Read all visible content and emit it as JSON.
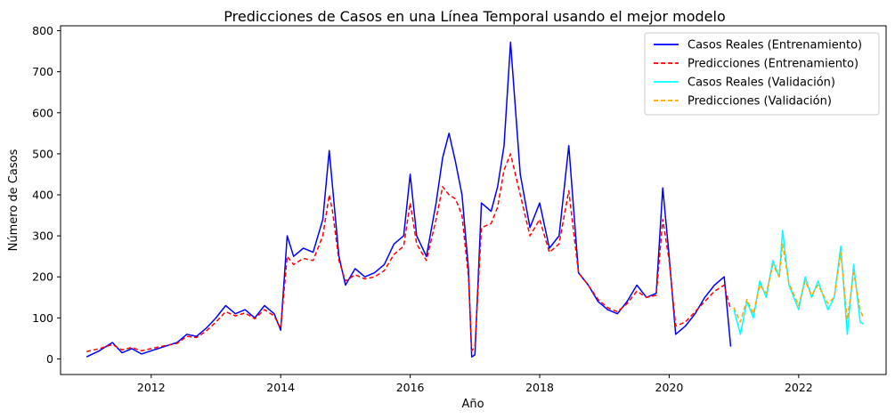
{
  "chart_data": {
    "type": "line",
    "title": "Predicciones de Casos en una Línea Temporal usando el mejor modelo",
    "xlabel": "Año",
    "ylabel": "Número de Casos",
    "xlim": [
      2010.6,
      2023.35
    ],
    "ylim": [
      -38,
      812
    ],
    "xticks": [
      2012,
      2014,
      2016,
      2018,
      2020,
      2022
    ],
    "yticks": [
      0,
      100,
      200,
      300,
      400,
      500,
      600,
      700,
      800
    ],
    "grid": false,
    "legend_position": "top-right",
    "series": [
      {
        "name": "Casos Reales (Entrenamiento)",
        "color": "#0000ff",
        "dash": "solid",
        "x": [
          2011.0,
          2011.2,
          2011.4,
          2011.55,
          2011.7,
          2011.85,
          2012.0,
          2012.2,
          2012.4,
          2012.55,
          2012.7,
          2012.85,
          2013.0,
          2013.15,
          2013.3,
          2013.45,
          2013.6,
          2013.75,
          2013.9,
          2014.0,
          2014.1,
          2014.2,
          2014.35,
          2014.5,
          2014.65,
          2014.75,
          2014.8,
          2014.9,
          2015.0,
          2015.15,
          2015.3,
          2015.45,
          2015.6,
          2015.75,
          2015.9,
          2016.0,
          2016.1,
          2016.25,
          2016.4,
          2016.5,
          2016.6,
          2016.7,
          2016.8,
          2016.9,
          2016.95,
          2017.0,
          2017.1,
          2017.25,
          2017.35,
          2017.45,
          2017.55,
          2017.7,
          2017.85,
          2018.0,
          2018.15,
          2018.3,
          2018.45,
          2018.6,
          2018.75,
          2018.9,
          2019.05,
          2019.2,
          2019.35,
          2019.5,
          2019.65,
          2019.8,
          2019.9,
          2020.0,
          2020.1,
          2020.25,
          2020.4,
          2020.55,
          2020.7,
          2020.85,
          2020.95
        ],
        "values": [
          5,
          20,
          40,
          15,
          25,
          12,
          20,
          30,
          40,
          60,
          55,
          75,
          100,
          130,
          110,
          120,
          100,
          130,
          110,
          70,
          300,
          250,
          270,
          260,
          340,
          508,
          420,
          250,
          180,
          220,
          200,
          210,
          230,
          280,
          300,
          450,
          300,
          250,
          380,
          490,
          550,
          480,
          400,
          220,
          5,
          10,
          380,
          360,
          420,
          520,
          772,
          450,
          320,
          380,
          270,
          300,
          520,
          210,
          180,
          140,
          120,
          110,
          140,
          180,
          150,
          160,
          417,
          250,
          60,
          80,
          110,
          150,
          180,
          200,
          30
        ]
      },
      {
        "name": "Predicciones (Entrenamiento)",
        "color": "#ff0000",
        "dash": "dashed",
        "x": [
          2011.0,
          2011.2,
          2011.4,
          2011.55,
          2011.7,
          2011.85,
          2012.0,
          2012.2,
          2012.4,
          2012.55,
          2012.7,
          2012.85,
          2013.0,
          2013.15,
          2013.3,
          2013.45,
          2013.6,
          2013.75,
          2013.9,
          2014.0,
          2014.1,
          2014.2,
          2014.35,
          2014.5,
          2014.65,
          2014.75,
          2014.8,
          2014.9,
          2015.0,
          2015.15,
          2015.3,
          2015.45,
          2015.6,
          2015.75,
          2015.9,
          2016.0,
          2016.1,
          2016.25,
          2016.4,
          2016.5,
          2016.6,
          2016.7,
          2016.8,
          2016.9,
          2016.95,
          2017.0,
          2017.1,
          2017.25,
          2017.35,
          2017.45,
          2017.55,
          2017.7,
          2017.85,
          2018.0,
          2018.15,
          2018.3,
          2018.45,
          2018.6,
          2018.75,
          2018.9,
          2019.05,
          2019.2,
          2019.35,
          2019.5,
          2019.65,
          2019.8,
          2019.9,
          2020.0,
          2020.1,
          2020.25,
          2020.4,
          2020.55,
          2020.7,
          2020.85,
          2020.95
        ],
        "values": [
          18,
          25,
          35,
          22,
          28,
          20,
          25,
          32,
          38,
          55,
          52,
          68,
          90,
          115,
          105,
          112,
          98,
          120,
          105,
          75,
          250,
          230,
          245,
          240,
          300,
          400,
          360,
          240,
          190,
          205,
          195,
          200,
          215,
          255,
          275,
          380,
          280,
          240,
          340,
          420,
          400,
          390,
          350,
          200,
          20,
          30,
          320,
          330,
          370,
          460,
          500,
          400,
          300,
          340,
          260,
          280,
          410,
          210,
          180,
          145,
          125,
          115,
          135,
          165,
          150,
          155,
          340,
          240,
          80,
          90,
          115,
          140,
          165,
          180,
          120
        ]
      },
      {
        "name": "Casos Reales (Validación)",
        "color": "#00ffff",
        "dash": "solid",
        "x": [
          2021.0,
          2021.1,
          2021.2,
          2021.3,
          2021.4,
          2021.5,
          2021.6,
          2021.7,
          2021.75,
          2021.85,
          2022.0,
          2022.1,
          2022.2,
          2022.3,
          2022.45,
          2022.55,
          2022.65,
          2022.75,
          2022.85,
          2022.95,
          2023.0
        ],
        "values": [
          120,
          60,
          140,
          100,
          190,
          150,
          240,
          200,
          313,
          180,
          120,
          200,
          150,
          190,
          120,
          150,
          275,
          60,
          230,
          90,
          85
        ]
      },
      {
        "name": "Predicciones (Validación)",
        "color": "#ffa500",
        "dash": "dashed",
        "x": [
          2021.0,
          2021.1,
          2021.2,
          2021.3,
          2021.4,
          2021.5,
          2021.6,
          2021.7,
          2021.75,
          2021.85,
          2022.0,
          2022.1,
          2022.2,
          2022.3,
          2022.45,
          2022.55,
          2022.65,
          2022.75,
          2022.85,
          2022.95,
          2023.0
        ],
        "values": [
          125,
          90,
          145,
          110,
          180,
          160,
          230,
          200,
          280,
          185,
          130,
          190,
          155,
          180,
          135,
          150,
          260,
          95,
          210,
          120,
          100
        ]
      }
    ]
  }
}
